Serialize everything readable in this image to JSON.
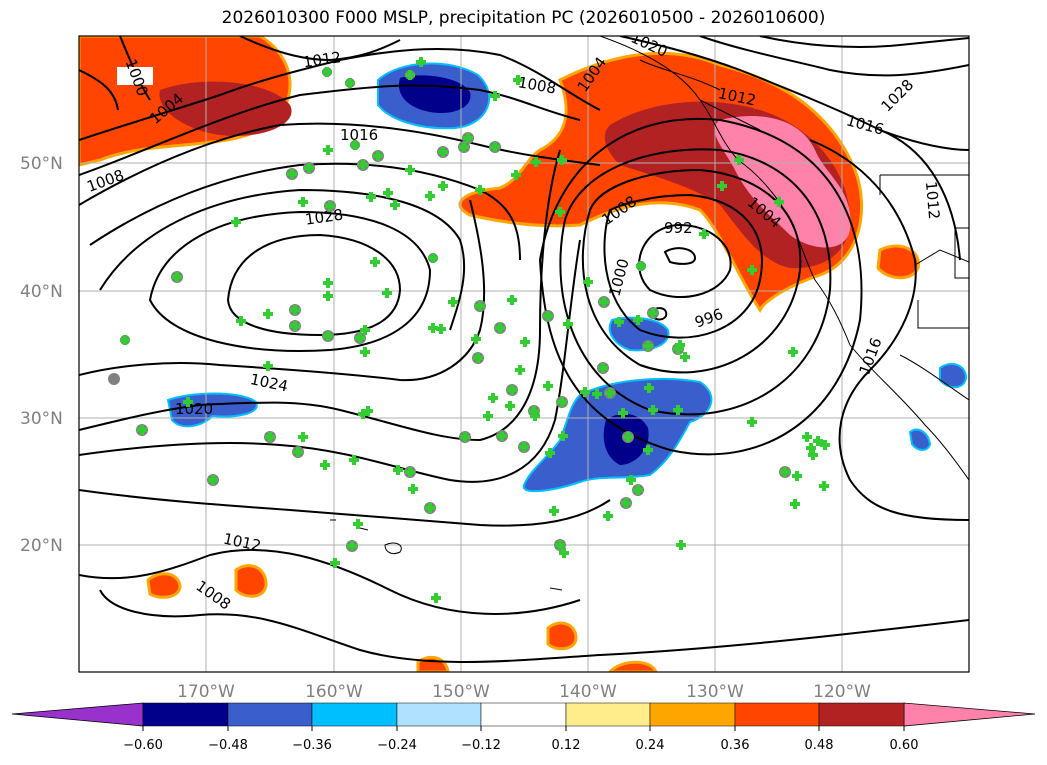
{
  "title": "2026010300 F000 MSLP, precipitation PC (2026010500 - 2026010600)",
  "map": {
    "lat_labels": [
      "50°N",
      "40°N",
      "30°N",
      "20°N"
    ],
    "lon_labels": [
      "170°W",
      "160°W",
      "150°W",
      "140°W",
      "130°W",
      "120°W"
    ],
    "isobar_labels": [
      "1000",
      "1004",
      "1012",
      "1008",
      "1020",
      "1004",
      "1008",
      "1028",
      "1012",
      "1016",
      "1016",
      "1008",
      "1028",
      "992",
      "1004",
      "1012",
      "1000",
      "996",
      "1016",
      "1024",
      "1020",
      "1012",
      "1008"
    ]
  },
  "colorbar": {
    "ticks": [
      "−0.60",
      "−0.48",
      "−0.36",
      "−0.24",
      "−0.12",
      "0.12",
      "0.24",
      "0.36",
      "0.48",
      "0.60"
    ],
    "colors": [
      "#9932cc",
      "#00008b",
      "#3a5fcd",
      "#00bfff",
      "#b0e2ff",
      "#ffffff",
      "#ffec8b",
      "#ffa500",
      "#ff4500",
      "#b22222",
      "#ff82ab"
    ]
  }
}
